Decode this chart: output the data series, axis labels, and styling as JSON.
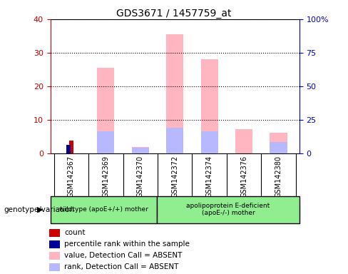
{
  "title": "GDS3671 / 1457759_at",
  "samples": [
    "GSM142367",
    "GSM142369",
    "GSM142370",
    "GSM142372",
    "GSM142374",
    "GSM142376",
    "GSM142380"
  ],
  "value_absent": [
    null,
    25.5,
    2.0,
    35.5,
    28.0,
    7.2,
    6.2
  ],
  "rank_absent": [
    null,
    16.3,
    4.5,
    19.0,
    16.5,
    null,
    8.3
  ],
  "count": [
    3.8,
    null,
    null,
    null,
    null,
    null,
    null
  ],
  "percentile": [
    6.2,
    null,
    null,
    null,
    null,
    null,
    null
  ],
  "ylim_left": [
    0,
    40
  ],
  "ylim_right": [
    0,
    100
  ],
  "yticks_left": [
    0,
    10,
    20,
    30,
    40
  ],
  "yticks_right": [
    0,
    25,
    50,
    75,
    100
  ],
  "yticklabels_right": [
    "0",
    "25",
    "50",
    "75",
    "100%"
  ],
  "left_axis_color": "#cc0000",
  "right_axis_color": "#0000cc",
  "bar_color_absent_value": "#FFB6C1",
  "bar_color_absent_rank": "#b8b8ff",
  "count_color": "#cc0000",
  "percentile_color": "#000099",
  "legend_items": [
    {
      "label": "count",
      "color": "#cc0000"
    },
    {
      "label": "percentile rank within the sample",
      "color": "#000099"
    },
    {
      "label": "value, Detection Call = ABSENT",
      "color": "#FFB6C1"
    },
    {
      "label": "rank, Detection Call = ABSENT",
      "color": "#b8b8ff"
    }
  ],
  "annotation_label": "genotype/variation",
  "group1_label": "wildtype (apoE+/+) mother",
  "group2_label": "apolipoprotein E-deficient\n(apoE-/-) mother",
  "group1_color": "#90EE90",
  "group2_color": "#90EE90",
  "gray_bg": "#d3d3d3"
}
